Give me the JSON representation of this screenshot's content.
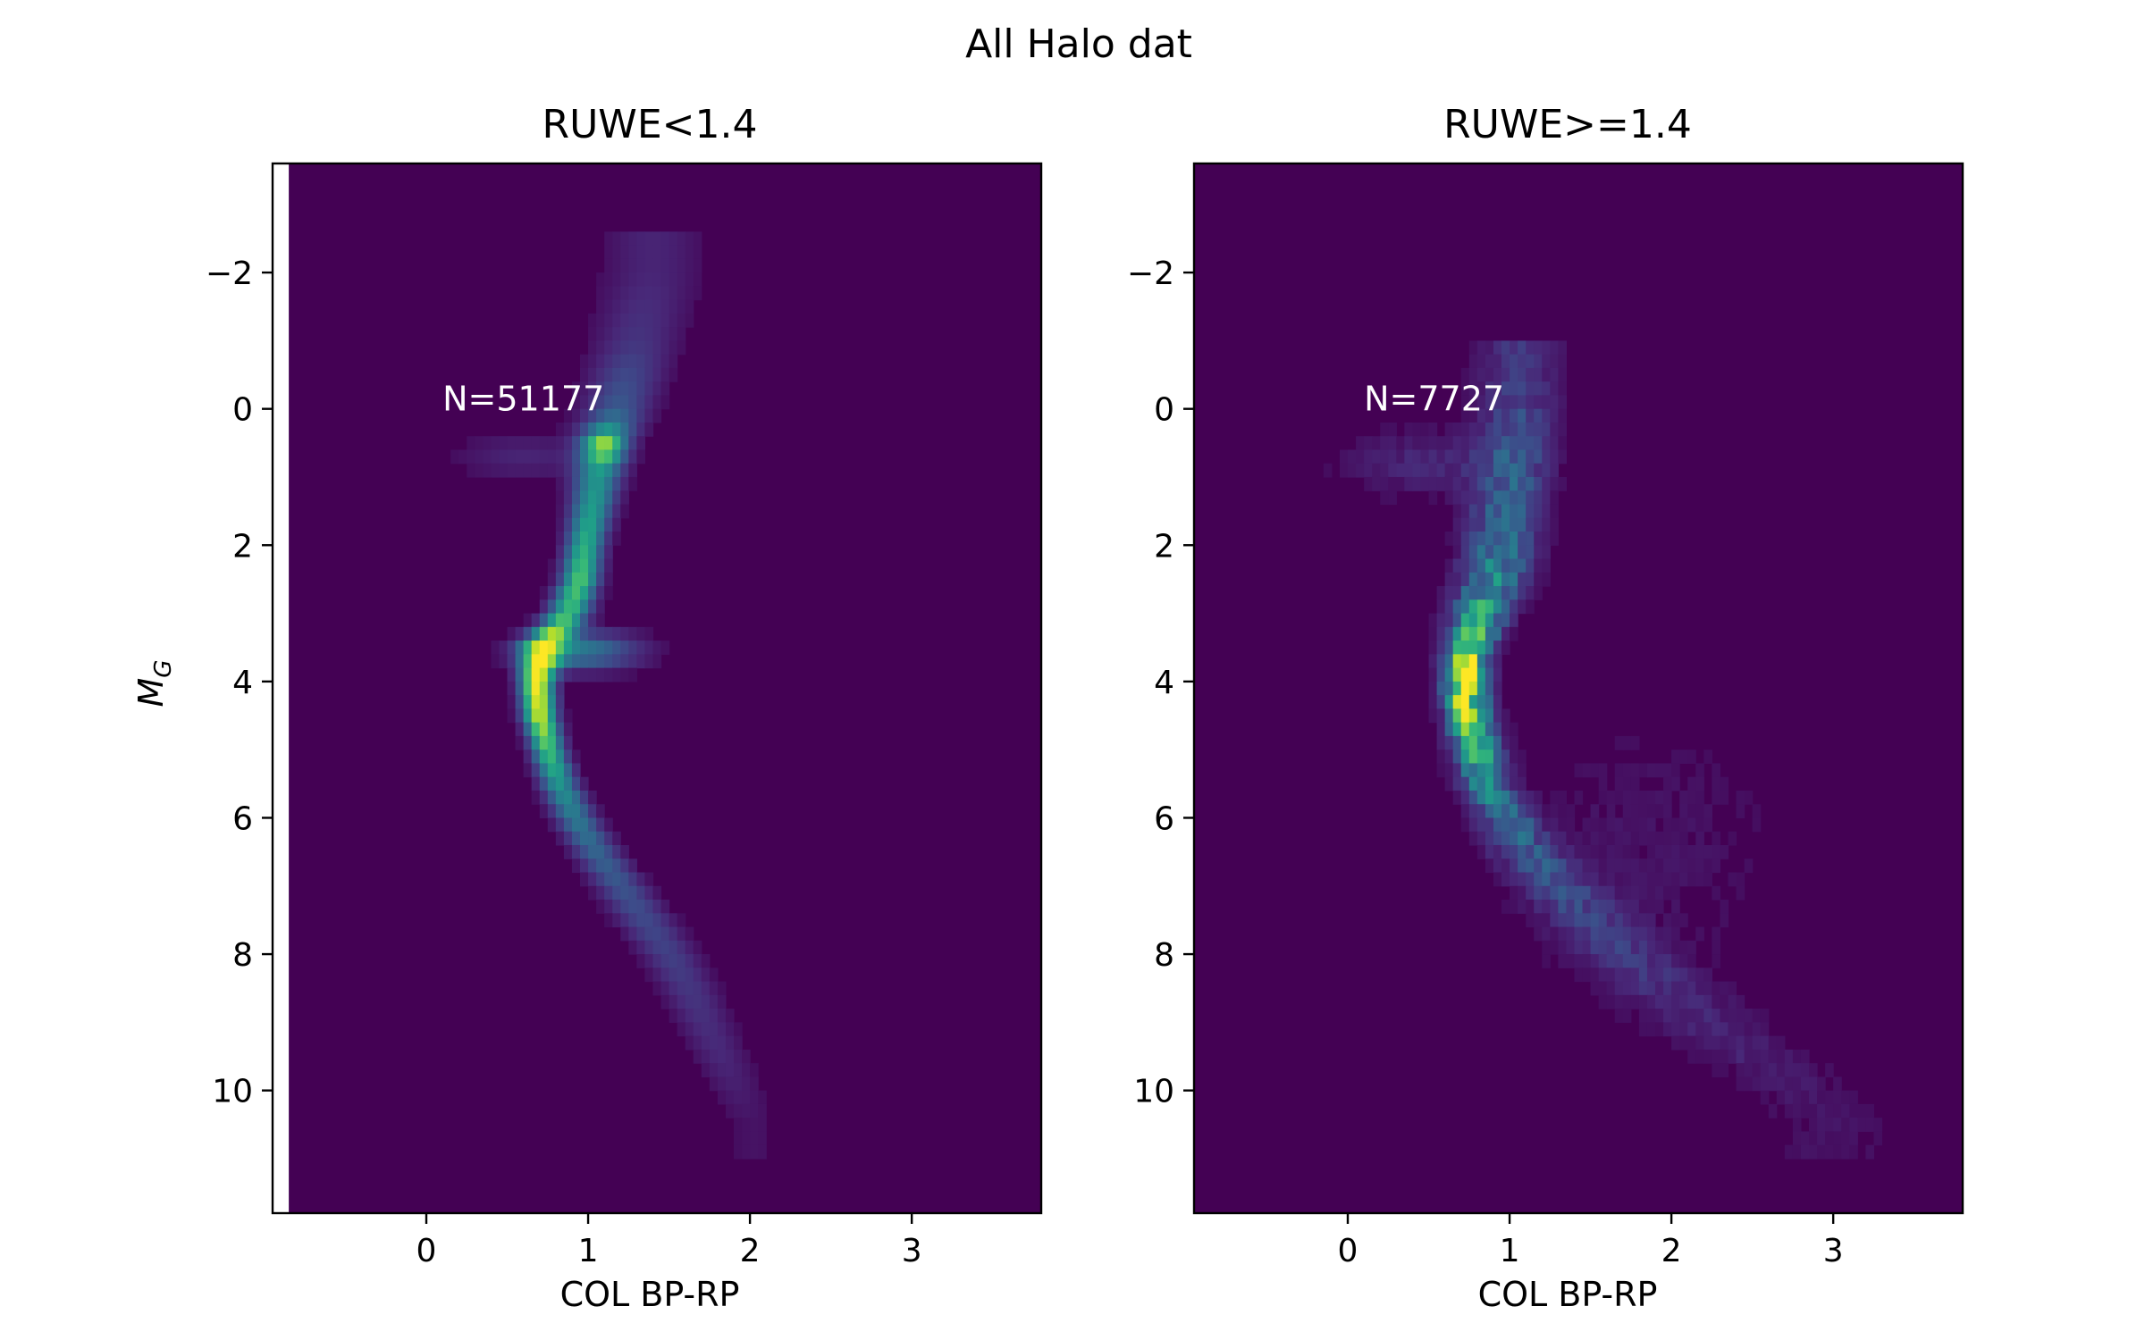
{
  "figure": {
    "suptitle": "All Halo dat",
    "colors": {
      "background": "#440154",
      "colormap": [
        "#440154",
        "#482878",
        "#3e4989",
        "#31688e",
        "#26828e",
        "#1f9e89",
        "#35b779",
        "#6ece58",
        "#b5de2b",
        "#fde725"
      ]
    }
  },
  "chart_data": [
    {
      "type": "heatmap",
      "title": "RUWE<1.4",
      "xlabel": "COL BP-RP",
      "ylabel": "M_G",
      "ylabel_main": "M",
      "ylabel_sub": "G",
      "xlim": [
        -0.95,
        3.8
      ],
      "ylim": [
        11.8,
        -3.6
      ],
      "y_inverted": true,
      "xticks": [
        0,
        1,
        2,
        3
      ],
      "xtick_labels": [
        "0",
        "1",
        "2",
        "3"
      ],
      "yticks": [
        -2,
        0,
        2,
        4,
        6,
        8,
        10
      ],
      "ytick_labels": [
        "−2",
        "0",
        "2",
        "4",
        "6",
        "8",
        "10"
      ],
      "annotation": {
        "text": "N=51177",
        "x": 0.1,
        "y": 0.0
      },
      "empty_band_x": [
        -0.95,
        -0.85
      ],
      "ridge": [
        {
          "y": -2.0,
          "x": 1.4,
          "w": 0.22,
          "a": 0.1
        },
        {
          "y": -1.0,
          "x": 1.3,
          "w": 0.18,
          "a": 0.15
        },
        {
          "y": 0.0,
          "x": 1.18,
          "w": 0.14,
          "a": 0.28
        },
        {
          "y": 0.5,
          "x": 1.1,
          "w": 0.11,
          "a": 0.55
        },
        {
          "y": 1.0,
          "x": 1.06,
          "w": 0.1,
          "a": 0.5
        },
        {
          "y": 1.5,
          "x": 1.02,
          "w": 0.09,
          "a": 0.55
        },
        {
          "y": 2.0,
          "x": 0.98,
          "w": 0.08,
          "a": 0.62
        },
        {
          "y": 2.5,
          "x": 0.95,
          "w": 0.08,
          "a": 0.72
        },
        {
          "y": 3.0,
          "x": 0.88,
          "w": 0.09,
          "a": 0.66
        },
        {
          "y": 3.5,
          "x": 0.72,
          "w": 0.09,
          "a": 0.8
        },
        {
          "y": 4.0,
          "x": 0.68,
          "w": 0.07,
          "a": 1.0
        },
        {
          "y": 4.5,
          "x": 0.7,
          "w": 0.07,
          "a": 0.92
        },
        {
          "y": 5.0,
          "x": 0.75,
          "w": 0.07,
          "a": 0.7
        },
        {
          "y": 5.5,
          "x": 0.82,
          "w": 0.08,
          "a": 0.52
        },
        {
          "y": 6.0,
          "x": 0.92,
          "w": 0.09,
          "a": 0.4
        },
        {
          "y": 6.5,
          "x": 1.05,
          "w": 0.1,
          "a": 0.32
        },
        {
          "y": 7.0,
          "x": 1.2,
          "w": 0.11,
          "a": 0.26
        },
        {
          "y": 7.5,
          "x": 1.35,
          "w": 0.12,
          "a": 0.22
        },
        {
          "y": 8.0,
          "x": 1.5,
          "w": 0.12,
          "a": 0.19
        },
        {
          "y": 8.5,
          "x": 1.62,
          "w": 0.12,
          "a": 0.16
        },
        {
          "y": 9.0,
          "x": 1.72,
          "w": 0.12,
          "a": 0.13
        },
        {
          "y": 9.5,
          "x": 1.82,
          "w": 0.12,
          "a": 0.11
        },
        {
          "y": 10.0,
          "x": 1.92,
          "w": 0.12,
          "a": 0.08
        },
        {
          "y": 10.5,
          "x": 2.02,
          "w": 0.12,
          "a": 0.05
        }
      ],
      "extra_blobs": [
        {
          "x": 1.1,
          "y": 0.55,
          "sx": 0.08,
          "sy": 0.15,
          "a": 0.3
        },
        {
          "x": 0.6,
          "y": 0.7,
          "sx": 0.3,
          "sy": 0.25,
          "a": 0.1
        },
        {
          "x": 0.95,
          "y": 3.55,
          "sx": 0.25,
          "sy": 0.2,
          "a": 0.4
        }
      ],
      "noise": 0.0
    },
    {
      "type": "heatmap",
      "title": "RUWE>=1.4",
      "xlabel": "COL BP-RP",
      "ylabel": "",
      "xlim": [
        -0.95,
        3.8
      ],
      "ylim": [
        11.8,
        -3.6
      ],
      "y_inverted": true,
      "xticks": [
        0,
        1,
        2,
        3
      ],
      "xtick_labels": [
        "0",
        "1",
        "2",
        "3"
      ],
      "yticks": [
        -2,
        0,
        2,
        4,
        6,
        8,
        10
      ],
      "ytick_labels": [
        "−2",
        "0",
        "2",
        "4",
        "6",
        "8",
        "10"
      ],
      "annotation": {
        "text": "N=7727",
        "x": 0.1,
        "y": 0.0
      },
      "empty_band_x": null,
      "ridge": [
        {
          "y": -0.5,
          "x": 1.05,
          "w": 0.18,
          "a": 0.15
        },
        {
          "y": 0.5,
          "x": 1.05,
          "w": 0.15,
          "a": 0.25
        },
        {
          "y": 1.0,
          "x": 1.0,
          "w": 0.15,
          "a": 0.28
        },
        {
          "y": 1.5,
          "x": 0.98,
          "w": 0.15,
          "a": 0.33
        },
        {
          "y": 2.0,
          "x": 0.95,
          "w": 0.15,
          "a": 0.38
        },
        {
          "y": 2.5,
          "x": 0.9,
          "w": 0.14,
          "a": 0.45
        },
        {
          "y": 3.0,
          "x": 0.82,
          "w": 0.12,
          "a": 0.55
        },
        {
          "y": 3.5,
          "x": 0.75,
          "w": 0.1,
          "a": 0.75
        },
        {
          "y": 4.0,
          "x": 0.72,
          "w": 0.09,
          "a": 0.95
        },
        {
          "y": 4.5,
          "x": 0.75,
          "w": 0.09,
          "a": 0.85
        },
        {
          "y": 5.0,
          "x": 0.8,
          "w": 0.1,
          "a": 0.62
        },
        {
          "y": 5.5,
          "x": 0.85,
          "w": 0.1,
          "a": 0.48
        },
        {
          "y": 6.0,
          "x": 0.98,
          "w": 0.12,
          "a": 0.34
        },
        {
          "y": 6.5,
          "x": 1.1,
          "w": 0.14,
          "a": 0.26
        },
        {
          "y": 7.0,
          "x": 1.3,
          "w": 0.16,
          "a": 0.2
        },
        {
          "y": 7.5,
          "x": 1.5,
          "w": 0.18,
          "a": 0.16
        },
        {
          "y": 8.0,
          "x": 1.7,
          "w": 0.2,
          "a": 0.13
        },
        {
          "y": 8.5,
          "x": 1.95,
          "w": 0.22,
          "a": 0.11
        },
        {
          "y": 9.0,
          "x": 2.2,
          "w": 0.24,
          "a": 0.09
        },
        {
          "y": 9.5,
          "x": 2.5,
          "w": 0.26,
          "a": 0.08
        },
        {
          "y": 10.0,
          "x": 2.8,
          "w": 0.28,
          "a": 0.06
        },
        {
          "y": 10.5,
          "x": 3.0,
          "w": 0.28,
          "a": 0.05
        }
      ],
      "extra_blobs": [
        {
          "x": 0.5,
          "y": 0.8,
          "sx": 0.4,
          "sy": 0.35,
          "a": 0.1
        },
        {
          "x": 1.8,
          "y": 6.5,
          "sx": 0.7,
          "sy": 1.6,
          "a": 0.05
        }
      ],
      "noise": 0.35
    }
  ]
}
